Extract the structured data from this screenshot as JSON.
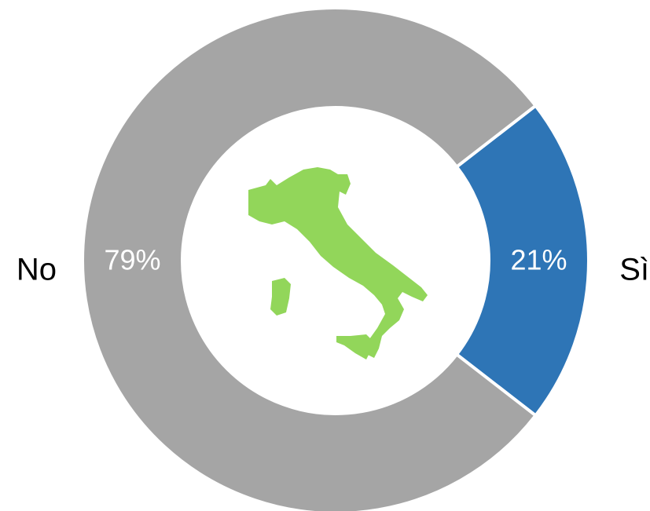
{
  "chart_data": {
    "type": "donut",
    "categories": [
      "Sì",
      "No"
    ],
    "values": [
      21,
      79
    ],
    "value_labels": [
      "21%",
      "79%"
    ],
    "colors": [
      "#2e75b6",
      "#a5a5a5"
    ]
  }
}
